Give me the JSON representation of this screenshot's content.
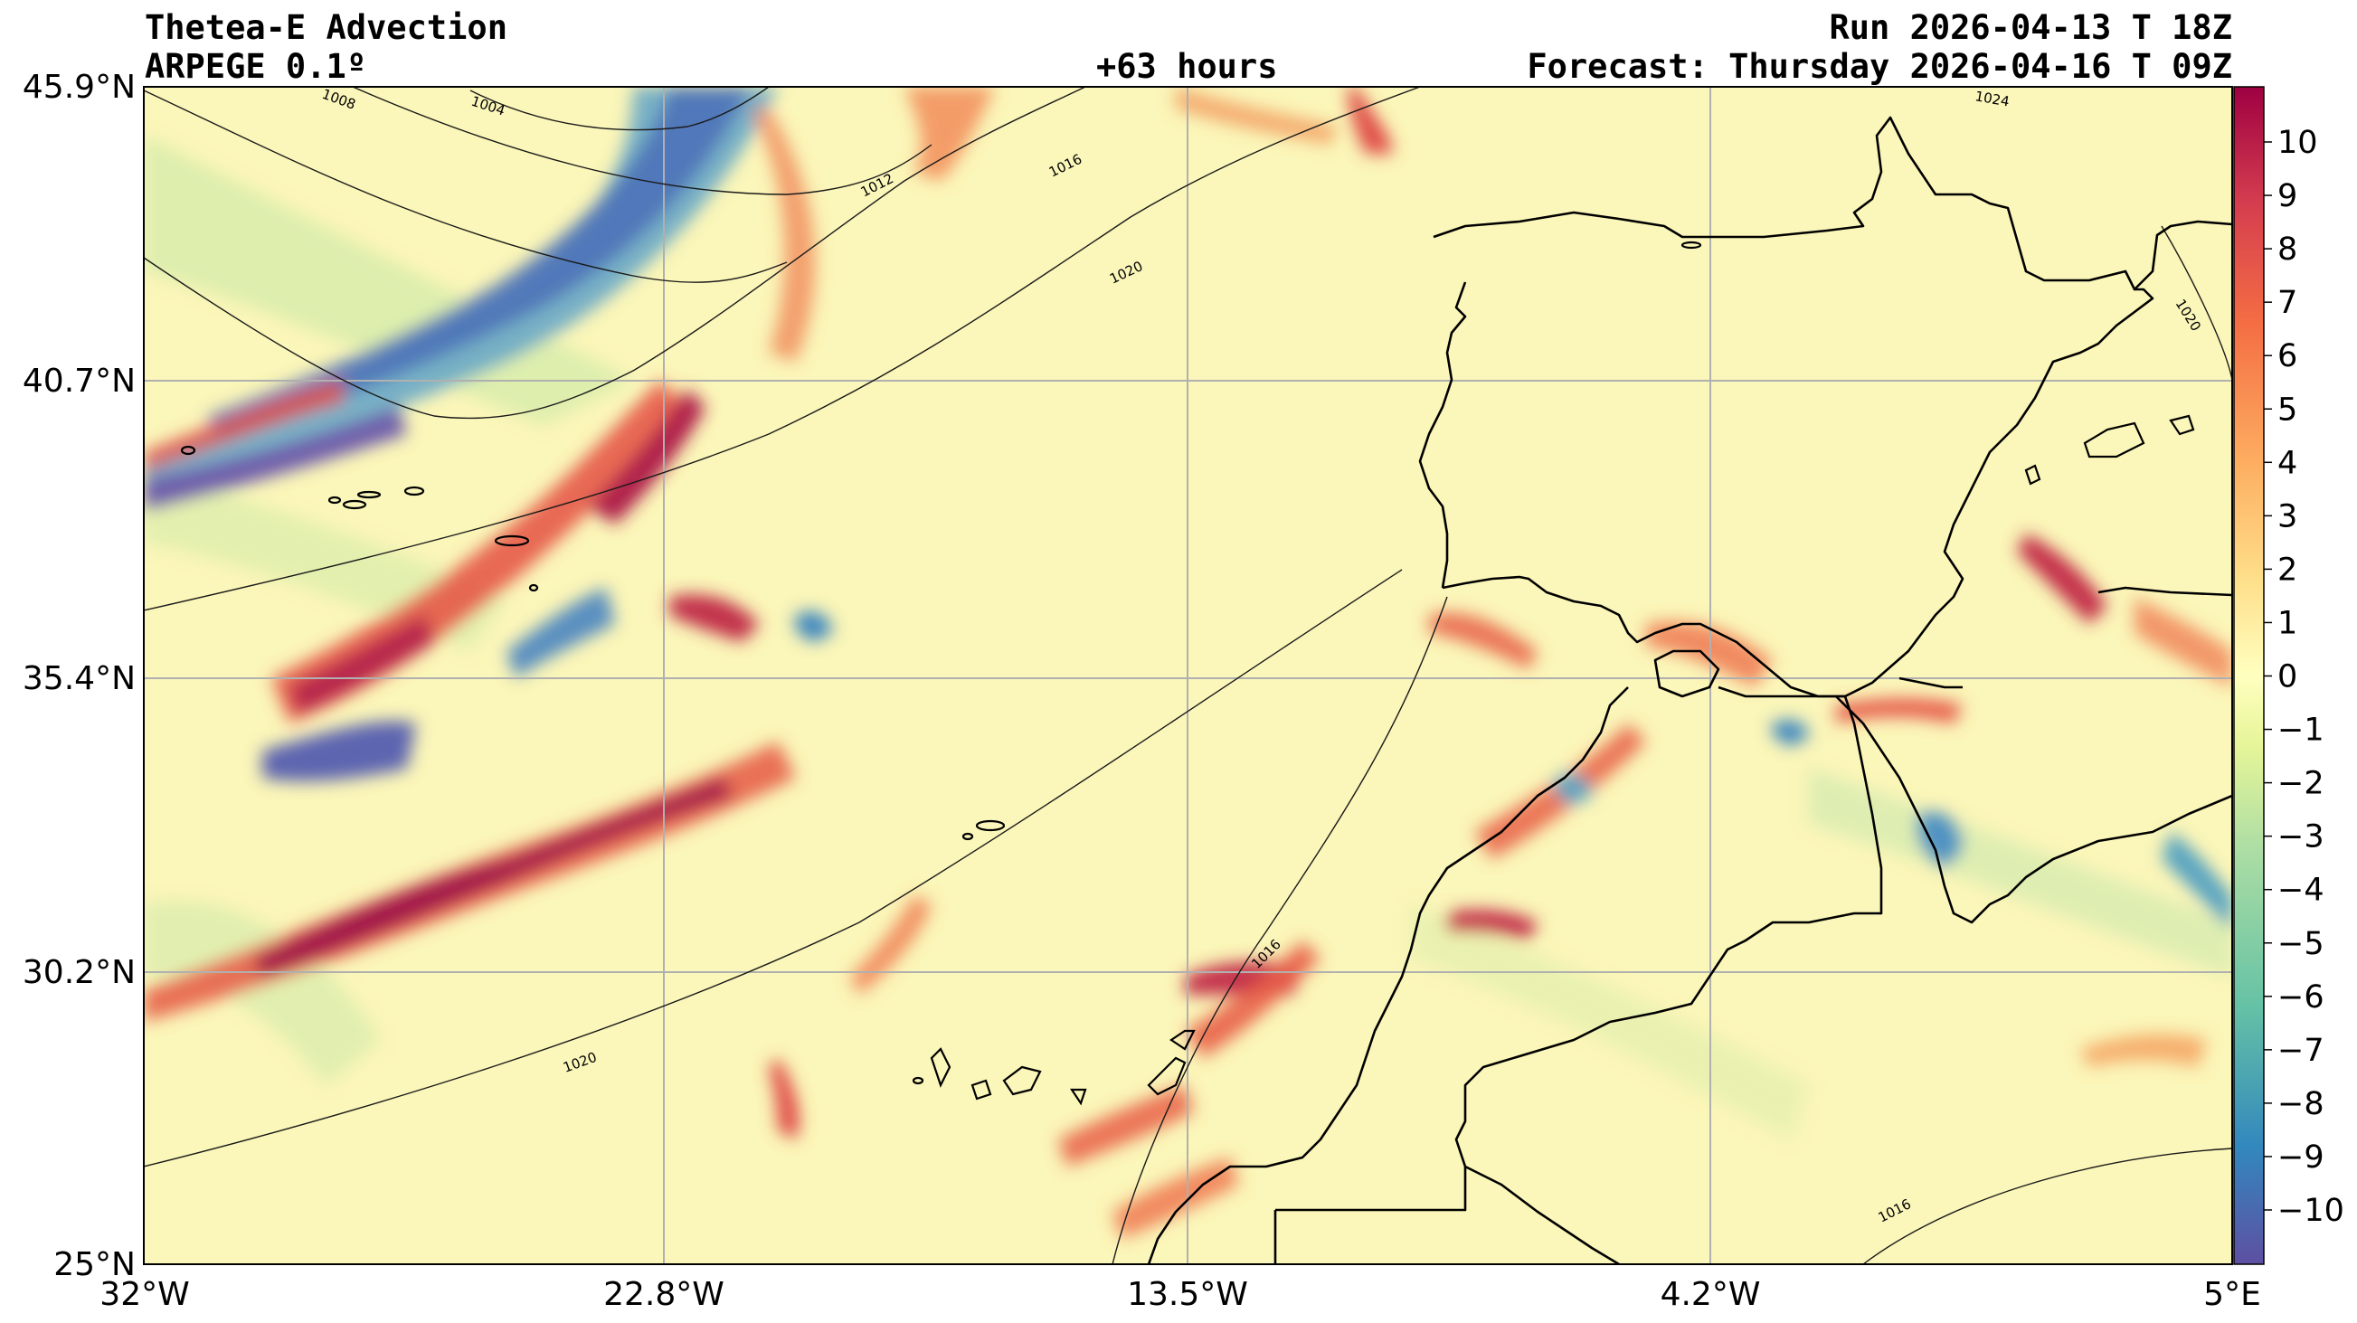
{
  "header": {
    "title": "Thetea-E Advection",
    "model": "ARPEGE 0.1º",
    "lead": "+63 hours",
    "run": "Run 2026-04-13 T 18Z",
    "forecast": "Forecast: Thursday 2026-04-16 T 09Z"
  },
  "axes": {
    "lat_labels": [
      "45.9°N",
      "40.7°N",
      "35.4°N",
      "30.2°N",
      "25°N"
    ],
    "lon_labels": [
      "32°W",
      "22.8°W",
      "13.5°W",
      "4.2°W",
      "5°E"
    ]
  },
  "colorbar": {
    "ticks": [
      "10",
      "9",
      "8",
      "7",
      "6",
      "5",
      "4",
      "3",
      "2",
      "1",
      "0",
      "−1",
      "−2",
      "−3",
      "−4",
      "−5",
      "−6",
      "−7",
      "−8",
      "−9",
      "−10"
    ],
    "palette": [
      "#5e4fa2",
      "#3288bd",
      "#66c2a5",
      "#abdda4",
      "#e6f598",
      "#ffffbf",
      "#fee08b",
      "#fdae61",
      "#f46d43",
      "#d53e4f",
      "#9e0142"
    ]
  },
  "isobars": [
    {
      "label": "1004"
    },
    {
      "label": "1008"
    },
    {
      "label": "1012"
    },
    {
      "label": "1016"
    },
    {
      "label": "1020"
    },
    {
      "label": "1016"
    },
    {
      "label": "1020"
    },
    {
      "label": "1016"
    },
    {
      "label": "1020"
    },
    {
      "label": "1024"
    }
  ]
}
